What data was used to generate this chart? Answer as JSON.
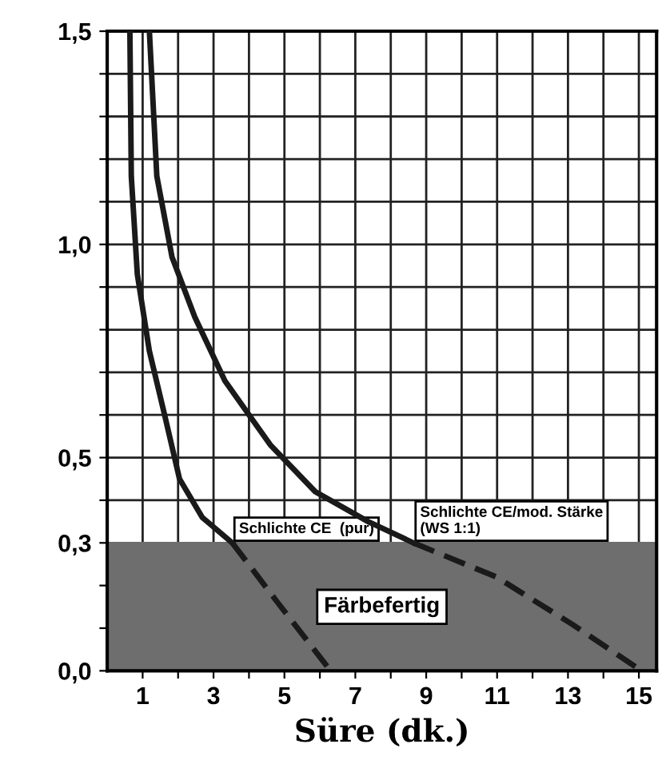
{
  "chart_data": {
    "type": "line",
    "xlabel": "Süre (dk.)",
    "xlim": [
      0,
      15.5
    ],
    "ylim": [
      0,
      1.5
    ],
    "xticks": [
      1,
      {
        "value": 2,
        "label": null
      },
      3,
      {
        "value": 4,
        "label": null
      },
      5,
      {
        "value": 6,
        "label": null
      },
      7,
      {
        "value": 8,
        "label": null
      },
      9,
      {
        "value": 10,
        "label": null
      },
      11,
      {
        "value": 12,
        "label": null
      },
      13,
      {
        "value": 14,
        "label": null
      },
      15
    ],
    "yticks": [
      {
        "value": 0,
        "label": "0,0"
      },
      {
        "value": 0.1,
        "label": null
      },
      {
        "value": 0.2,
        "label": null
      },
      {
        "value": 0.3,
        "label": "0,3"
      },
      {
        "value": 0.4,
        "label": null
      },
      {
        "value": 0.5,
        "label": "0,5"
      },
      {
        "value": 0.6,
        "label": null
      },
      {
        "value": 0.7,
        "label": null
      },
      {
        "value": 0.8,
        "label": null
      },
      {
        "value": 0.9,
        "label": null
      },
      {
        "value": 1.0,
        "label": "1,0"
      },
      {
        "value": 1.1,
        "label": null
      },
      {
        "value": 1.2,
        "label": null
      },
      {
        "value": 1.3,
        "label": null
      },
      {
        "value": 1.4,
        "label": null
      },
      {
        "value": 1.5,
        "label": "1,5"
      }
    ],
    "grid": true,
    "series": [
      {
        "name": "Schlichte CE  (pur)",
        "color": "#1a1a1a",
        "line_style": "solid",
        "x": [
          0.64,
          0.68,
          0.85,
          1.19,
          1.62,
          2.04,
          2.68,
          3.53
        ],
        "values": [
          1.5,
          1.16,
          0.93,
          0.75,
          0.6,
          0.45,
          0.36,
          0.3
        ]
      },
      {
        "color": "#1a1a1a",
        "line_style": "dashed",
        "x": [
          3.53,
          4.81,
          6.21
        ],
        "values": [
          0.3,
          0.16,
          0.01
        ]
      },
      {
        "name": "Schlichte CE/mod. Stärke\n(WS 1:1)",
        "color": "#1a1a1a",
        "line_style": "solid",
        "x": [
          1.19,
          1.4,
          1.83,
          2.47,
          3.32,
          4.6,
          5.87,
          7.36,
          8.64
        ],
        "values": [
          1.5,
          1.16,
          0.97,
          0.83,
          0.68,
          0.53,
          0.42,
          0.35,
          0.3
        ]
      },
      {
        "color": "#1a1a1a",
        "line_style": "dashed",
        "x": [
          8.64,
          10.98,
          13.1,
          14.9
        ],
        "values": [
          0.3,
          0.22,
          0.11,
          0.01
        ]
      }
    ],
    "bands": [
      {
        "axis": "y",
        "from": 0,
        "to": 0.3,
        "label": "Färbefertig",
        "color": "#6e6e6e"
      }
    ]
  }
}
